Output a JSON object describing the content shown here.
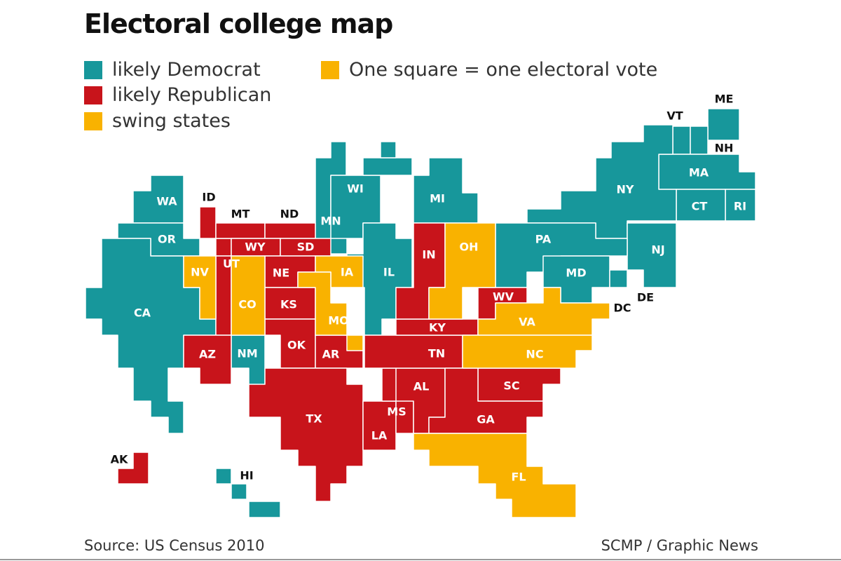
{
  "title": "Electoral college map",
  "legend": {
    "democrat": "likely Democrat",
    "republican": "likely Republican",
    "swing": "swing states",
    "square_note": "One square = one electoral vote"
  },
  "colors": {
    "democrat": "#17979B",
    "republican": "#C8141B",
    "swing": "#F9B200",
    "border": "#ffffff"
  },
  "states": {
    "ME": "ME",
    "VT": "VT",
    "NH": "NH",
    "MA": "MA",
    "RI": "RI",
    "CT": "CT",
    "NY": "NY",
    "NJ": "NJ",
    "PA": "PA",
    "DE": "DE",
    "MD": "MD",
    "DC": "DC",
    "VA": "VA",
    "WV": "WV",
    "NC": "NC",
    "SC": "SC",
    "GA": "GA",
    "FL": "FL",
    "OH": "OH",
    "MI": "MI",
    "IN": "IN",
    "KY": "KY",
    "TN": "TN",
    "AL": "AL",
    "MS": "MS",
    "IL": "IL",
    "WI": "WI",
    "MN": "MN",
    "IA": "IA",
    "MO": "MO",
    "AR": "AR",
    "LA": "LA",
    "TX": "TX",
    "OK": "OK",
    "KS": "KS",
    "NE": "NE",
    "SD": "SD",
    "ND": "ND",
    "MT": "MT",
    "WY": "WY",
    "CO": "CO",
    "NM": "NM",
    "AZ": "AZ",
    "UT": "UT",
    "NV": "NV",
    "ID": "ID",
    "WA": "WA",
    "OR": "OR",
    "CA": "CA",
    "AK": "AK",
    "HI": "HI"
  },
  "footer": {
    "source": "Source: US Census 2010",
    "credit": "SCMP / Graphic News"
  }
}
